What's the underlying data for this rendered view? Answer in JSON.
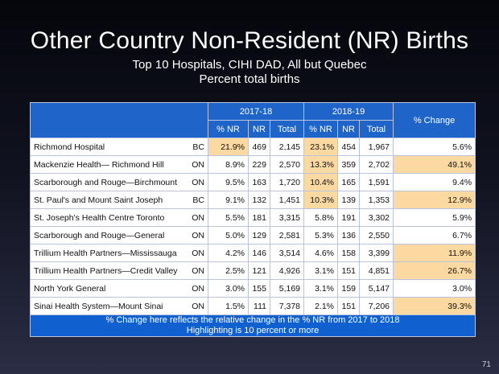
{
  "title": "Other Country Non-Resident (NR) Births",
  "subtitle1": "Top 10 Hospitals, CIHI DAD, All but Quebec",
  "subtitle2": "Percent total births",
  "header": {
    "period1": "2017-18",
    "period2": "2018-19",
    "change": "% Change",
    "pct_nr": "% NR",
    "nr": "NR",
    "total": "Total"
  },
  "rows": [
    {
      "name": "Richmond Hospital",
      "prov": "BC",
      "p1": "21.9%",
      "nr1": "469",
      "t1": "2,145",
      "p2": "23.1%",
      "nr2": "454",
      "t2": "1,967",
      "chg": "5.6%",
      "hl_p1": true,
      "hl_p2": true,
      "hl_chg": false
    },
    {
      "name": "Mackenzie Health— Richmond Hill",
      "prov": "ON",
      "p1": "8.9%",
      "nr1": "229",
      "t1": "2,570",
      "p2": "13.3%",
      "nr2": "359",
      "t2": "2,702",
      "chg": "49.1%",
      "hl_p1": false,
      "hl_p2": true,
      "hl_chg": true
    },
    {
      "name": "Scarborough and Rouge—Birchmount",
      "prov": "ON",
      "p1": "9.5%",
      "nr1": "163",
      "t1": "1,720",
      "p2": "10.4%",
      "nr2": "165",
      "t2": "1,591",
      "chg": "9.4%",
      "hl_p1": false,
      "hl_p2": true,
      "hl_chg": false
    },
    {
      "name": "St. Paul's and Mount Saint Joseph",
      "prov": "BC",
      "p1": "9.1%",
      "nr1": "132",
      "t1": "1,451",
      "p2": "10.3%",
      "nr2": "139",
      "t2": "1,353",
      "chg": "12.9%",
      "hl_p1": false,
      "hl_p2": true,
      "hl_chg": true
    },
    {
      "name": "St. Joseph's Health Centre Toronto",
      "prov": "ON",
      "p1": "5.5%",
      "nr1": "181",
      "t1": "3,315",
      "p2": "5.8%",
      "nr2": "191",
      "t2": "3,302",
      "chg": "5.9%",
      "hl_p1": false,
      "hl_p2": false,
      "hl_chg": false
    },
    {
      "name": "Scarborough and Rouge—General",
      "prov": "ON",
      "p1": "5.0%",
      "nr1": "129",
      "t1": "2,581",
      "p2": "5.3%",
      "nr2": "136",
      "t2": "2,550",
      "chg": "6.7%",
      "hl_p1": false,
      "hl_p2": false,
      "hl_chg": false
    },
    {
      "name": "Trillium Health Partners—Mississauga",
      "prov": "ON",
      "p1": "4.2%",
      "nr1": "146",
      "t1": "3,514",
      "p2": "4.6%",
      "nr2": "158",
      "t2": "3,399",
      "chg": "11.9%",
      "hl_p1": false,
      "hl_p2": false,
      "hl_chg": true
    },
    {
      "name": "Trillium Health Partners—Credit Valley",
      "prov": "ON",
      "p1": "2.5%",
      "nr1": "121",
      "t1": "4,926",
      "p2": "3.1%",
      "nr2": "151",
      "t2": "4,851",
      "chg": "26.7%",
      "hl_p1": false,
      "hl_p2": false,
      "hl_chg": true
    },
    {
      "name": "North York General",
      "prov": "ON",
      "p1": "3.0%",
      "nr1": "155",
      "t1": "5,169",
      "p2": "3.1%",
      "nr2": "159",
      "t2": "5,147",
      "chg": "3.0%",
      "hl_p1": false,
      "hl_p2": false,
      "hl_chg": false
    },
    {
      "name": "Sinai Health System—Mount Sinai",
      "prov": "ON",
      "p1": "1.5%",
      "nr1": "111",
      "t1": "7,378",
      "p2": "2.1%",
      "nr2": "151",
      "t2": "7,206",
      "chg": "39.3%",
      "hl_p1": false,
      "hl_p2": false,
      "hl_chg": true
    }
  ],
  "note1": "% Change here reflects the relative change in the % NR from 2017 to 2018",
  "note2": "Highlighting is 10 percent or more",
  "page_number": "71",
  "colors": {
    "highlight": "#fcd9a0",
    "header": "#1f64c8"
  }
}
